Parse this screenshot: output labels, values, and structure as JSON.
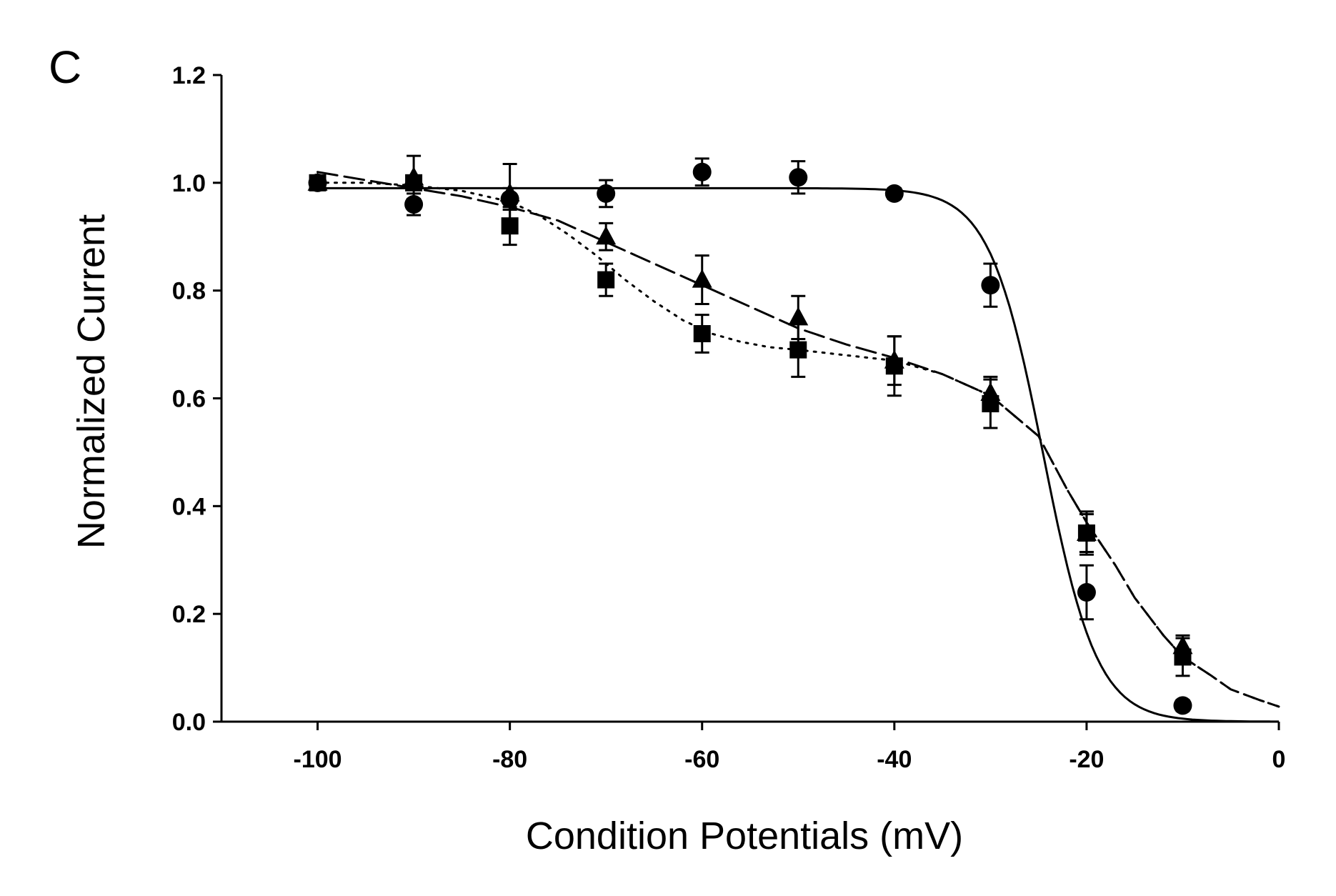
{
  "panel_label": "C",
  "chart_data": {
    "type": "scatter",
    "xlabel": "Condition Potentials (mV)",
    "ylabel": "Normalized Current",
    "xlim": [
      -110,
      0
    ],
    "ylim": [
      0,
      1.2
    ],
    "x_ticks": [
      "-100",
      "-80",
      "-60",
      "-40",
      "-20",
      "0"
    ],
    "y_ticks": [
      "0.0",
      "0.2",
      "0.4",
      "0.6",
      "0.8",
      "1.0",
      "1.2"
    ],
    "grid": false,
    "legend": "none",
    "series": [
      {
        "marker": "circle",
        "line_style": "solid",
        "x": [
          -100,
          -90,
          -80,
          -70,
          -60,
          -50,
          -40,
          -30,
          -20,
          -10
        ],
        "y": [
          1.0,
          0.96,
          0.97,
          0.98,
          1.02,
          1.01,
          0.98,
          0.81,
          0.24,
          0.03
        ],
        "err": [
          0.01,
          0.02,
          0.02,
          0.025,
          0.025,
          0.03,
          0.01,
          0.04,
          0.05,
          0.01
        ],
        "fit": {
          "type": "boltzmann",
          "top": 0.99,
          "v_half": -24.5,
          "k": 2.8
        }
      },
      {
        "marker": "triangle",
        "line_style": "dashed",
        "x": [
          -100,
          -90,
          -80,
          -70,
          -60,
          -50,
          -40,
          -30,
          -20,
          -10
        ],
        "y": [
          1.0,
          1.01,
          0.98,
          0.9,
          0.82,
          0.75,
          0.67,
          0.61,
          0.35,
          0.14
        ],
        "err": [
          0.01,
          0.04,
          0.055,
          0.025,
          0.045,
          0.04,
          0.045,
          0.03,
          0.035,
          0.02
        ]
      },
      {
        "marker": "square",
        "line_style": "dotted",
        "x": [
          -100,
          -90,
          -80,
          -70,
          -60,
          -50,
          -40,
          -30,
          -20,
          -10
        ],
        "y": [
          1.0,
          1.0,
          0.92,
          0.82,
          0.72,
          0.69,
          0.66,
          0.59,
          0.35,
          0.12
        ],
        "err": [
          0.01,
          0.01,
          0.035,
          0.03,
          0.035,
          0.05,
          0.055,
          0.045,
          0.04,
          0.035
        ]
      }
    ],
    "fit_curves": [
      {
        "line_style": "dashed",
        "x": [
          -100,
          -95,
          -90,
          -85,
          -80,
          -75,
          -70,
          -65,
          -60,
          -55,
          -50,
          -45,
          -40,
          -35,
          -30,
          -25,
          -22,
          -20,
          -17,
          -15,
          -12,
          -10,
          -7,
          -5,
          -2,
          0
        ],
        "y": [
          1.02,
          1.005,
          0.99,
          0.975,
          0.955,
          0.93,
          0.89,
          0.85,
          0.81,
          0.77,
          0.73,
          0.7,
          0.675,
          0.645,
          0.605,
          0.53,
          0.43,
          0.37,
          0.29,
          0.23,
          0.16,
          0.12,
          0.085,
          0.06,
          0.04,
          0.028
        ]
      },
      {
        "line_style": "dotted",
        "x": [
          -100,
          -95,
          -90,
          -85,
          -80,
          -77,
          -74,
          -71,
          -68,
          -65,
          -62,
          -59,
          -56,
          -53,
          -50,
          -45,
          -40,
          -35,
          -30,
          -25,
          -22,
          -20,
          -17,
          -15,
          -12,
          -10,
          -7,
          -5,
          -2,
          0
        ],
        "y": [
          1.0,
          1.0,
          0.995,
          0.985,
          0.965,
          0.94,
          0.905,
          0.865,
          0.82,
          0.78,
          0.745,
          0.72,
          0.705,
          0.695,
          0.69,
          0.68,
          0.67,
          0.645,
          0.605,
          0.53,
          0.43,
          0.37,
          0.29,
          0.23,
          0.16,
          0.12,
          0.085,
          0.06,
          0.04,
          0.028
        ]
      }
    ]
  }
}
